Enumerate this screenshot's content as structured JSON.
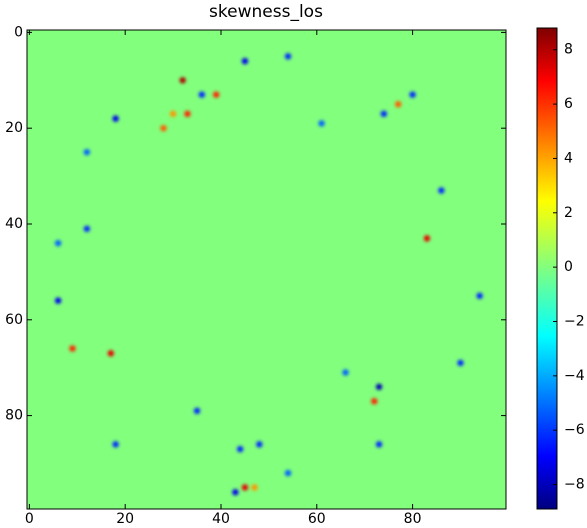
{
  "chart_data": {
    "type": "heatmap",
    "title": "skewness_los",
    "xlim": [
      -0.5,
      99.5
    ],
    "ylim": [
      99.5,
      -0.5
    ],
    "xticks": [
      0,
      20,
      40,
      60,
      80
    ],
    "yticks": [
      0,
      20,
      40,
      60,
      80
    ],
    "background_value": 0,
    "cells": [
      {
        "x": 32,
        "y": 10,
        "value": 8
      },
      {
        "x": 45,
        "y": 95,
        "value": 7
      },
      {
        "x": 72,
        "y": 77,
        "value": 6
      },
      {
        "x": 47,
        "y": 95,
        "value": 4
      },
      {
        "x": 18,
        "y": 18,
        "value": -7
      },
      {
        "x": 54,
        "y": 5,
        "value": -6
      },
      {
        "x": 45,
        "y": 6,
        "value": -7
      },
      {
        "x": 74,
        "y": 17,
        "value": -6
      },
      {
        "x": 12,
        "y": 25,
        "value": -5
      },
      {
        "x": 12,
        "y": 41,
        "value": -6
      },
      {
        "x": 6,
        "y": 44,
        "value": -5
      },
      {
        "x": 6,
        "y": 56,
        "value": -7
      },
      {
        "x": 83,
        "y": 43,
        "value": 7
      },
      {
        "x": 86,
        "y": 33,
        "value": -6
      },
      {
        "x": 94,
        "y": 55,
        "value": -6
      },
      {
        "x": 90,
        "y": 69,
        "value": -6
      },
      {
        "x": 73,
        "y": 74,
        "value": -8
      },
      {
        "x": 73,
        "y": 86,
        "value": -6
      },
      {
        "x": 66,
        "y": 71,
        "value": -5
      },
      {
        "x": 44,
        "y": 87,
        "value": -6
      },
      {
        "x": 43,
        "y": 96,
        "value": -7
      },
      {
        "x": 35,
        "y": 79,
        "value": -6
      },
      {
        "x": 18,
        "y": 86,
        "value": -6
      },
      {
        "x": 17,
        "y": 67,
        "value": 7
      },
      {
        "x": 9,
        "y": 66,
        "value": 6
      },
      {
        "x": 80,
        "y": 13,
        "value": -6
      },
      {
        "x": 61,
        "y": 19,
        "value": -5
      },
      {
        "x": 28,
        "y": 20,
        "value": 5
      },
      {
        "x": 30,
        "y": 17,
        "value": 4
      },
      {
        "x": 39,
        "y": 13,
        "value": 6
      },
      {
        "x": 36,
        "y": 13,
        "value": -6
      },
      {
        "x": 33,
        "y": 17,
        "value": 6
      },
      {
        "x": 54,
        "y": 92,
        "value": -5
      },
      {
        "x": 48,
        "y": 86,
        "value": -6
      },
      {
        "x": 77,
        "y": 15,
        "value": 5
      }
    ],
    "colorbar": {
      "clim": [
        -8.9,
        8.8
      ],
      "ticks": [
        {
          "value": -8,
          "label": "−8"
        },
        {
          "value": -6,
          "label": "−6"
        },
        {
          "value": -4,
          "label": "−4"
        },
        {
          "value": -2,
          "label": "−2"
        },
        0,
        2,
        4,
        6,
        8
      ]
    }
  }
}
